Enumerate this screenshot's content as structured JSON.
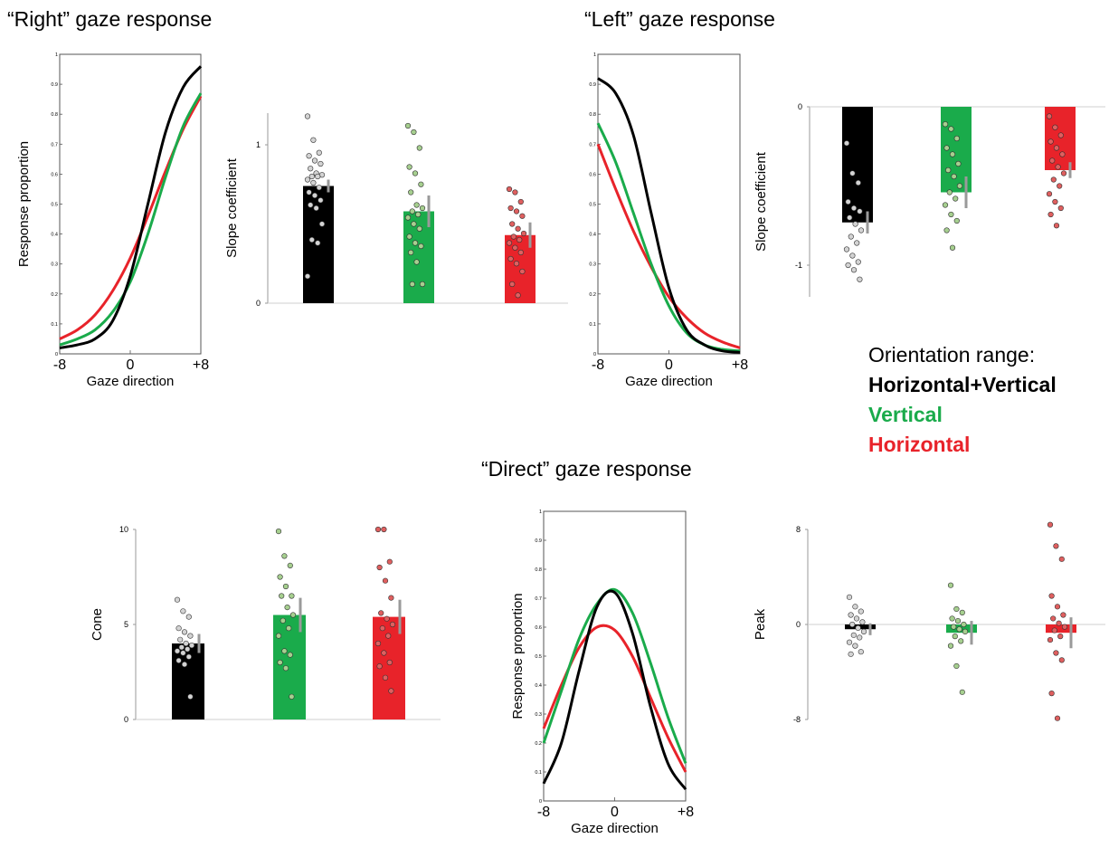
{
  "figure": {
    "panel_titles": {
      "right": "“Right” gaze response",
      "left": "“Left” gaze response",
      "direct": "“Direct” gaze response"
    },
    "legend": {
      "title": "Orientation range:",
      "items": [
        {
          "label": "Horizontal+Vertical",
          "color": "#000000"
        },
        {
          "label": "Vertical",
          "color": "#1aab4b"
        },
        {
          "label": "Horizontal",
          "color": "#e8232a"
        }
      ]
    }
  },
  "chart_data": [
    {
      "id": "right_curve",
      "type": "line",
      "title": "“Right” gaze response",
      "xlabel": "Gaze direction",
      "ylabel": "Response proportion",
      "xlim": [
        -8,
        8
      ],
      "ylim": [
        0,
        1
      ],
      "xticks": [
        "-8",
        "0",
        "+8"
      ],
      "yticks": [
        "0",
        "0.1",
        "0.2",
        "0.3",
        "0.4",
        "0.5",
        "0.6",
        "0.7",
        "0.8",
        "0.9",
        "1"
      ],
      "x": [
        -8,
        -6,
        -4,
        -2,
        0,
        2,
        4,
        6,
        8
      ],
      "series": [
        {
          "color": "#000000",
          "values": [
            0.02,
            0.03,
            0.05,
            0.11,
            0.26,
            0.5,
            0.74,
            0.89,
            0.96
          ]
        },
        {
          "color": "#1aab4b",
          "values": [
            0.03,
            0.05,
            0.08,
            0.14,
            0.24,
            0.4,
            0.59,
            0.76,
            0.87
          ]
        },
        {
          "color": "#e8232a",
          "values": [
            0.05,
            0.08,
            0.13,
            0.21,
            0.32,
            0.46,
            0.61,
            0.75,
            0.86
          ]
        }
      ]
    },
    {
      "id": "right_slope",
      "type": "bar",
      "ylabel": "Slope coefficient",
      "ylim": [
        0,
        1.2
      ],
      "yticks": [
        "0",
        "1"
      ],
      "bars": [
        {
          "color": "#000000",
          "dot_color": "#d3d3d3",
          "value": 0.74,
          "err": 0.04,
          "points": [
            1.18,
            1.03,
            0.95,
            0.93,
            0.9,
            0.88,
            0.85,
            0.82,
            0.81,
            0.8,
            0.8,
            0.78,
            0.76,
            0.73,
            0.7,
            0.68,
            0.65,
            0.62,
            0.6,
            0.5,
            0.4,
            0.38,
            0.17
          ]
        },
        {
          "color": "#1aab4b",
          "dot_color": "#a6cf8f",
          "value": 0.58,
          "err": 0.1,
          "points": [
            1.12,
            1.08,
            0.98,
            0.86,
            0.82,
            0.75,
            0.7,
            0.62,
            0.6,
            0.58,
            0.56,
            0.54,
            0.5,
            0.47,
            0.42,
            0.38,
            0.36,
            0.32,
            0.26,
            0.12,
            0.12
          ]
        },
        {
          "color": "#e8232a",
          "dot_color": "#df5f5f",
          "value": 0.43,
          "err": 0.08,
          "points": [
            0.72,
            0.7,
            0.64,
            0.6,
            0.58,
            0.55,
            0.5,
            0.47,
            0.44,
            0.42,
            0.4,
            0.38,
            0.35,
            0.32,
            0.28,
            0.25,
            0.2,
            0.12,
            0.05
          ]
        }
      ]
    },
    {
      "id": "left_curve",
      "type": "line",
      "title": "“Left” gaze response",
      "xlabel": "Gaze direction",
      "xlim": [
        -8,
        8
      ],
      "ylim": [
        0,
        1
      ],
      "xticks": [
        "-8",
        "0",
        "+8"
      ],
      "yticks": [
        "0",
        "0.1",
        "0.2",
        "0.3",
        "0.4",
        "0.5",
        "0.6",
        "0.7",
        "0.8",
        "0.9",
        "1"
      ],
      "x": [
        -8,
        -6,
        -4,
        -2,
        0,
        2,
        4,
        6,
        8
      ],
      "series": [
        {
          "color": "#000000",
          "values": [
            0.92,
            0.87,
            0.73,
            0.47,
            0.22,
            0.08,
            0.03,
            0.01,
            0.005
          ]
        },
        {
          "color": "#1aab4b",
          "values": [
            0.77,
            0.64,
            0.47,
            0.3,
            0.16,
            0.07,
            0.03,
            0.015,
            0.01
          ]
        },
        {
          "color": "#e8232a",
          "values": [
            0.7,
            0.55,
            0.41,
            0.29,
            0.19,
            0.12,
            0.07,
            0.04,
            0.02
          ]
        }
      ]
    },
    {
      "id": "left_slope",
      "type": "bar",
      "ylabel": "Slope coefficient",
      "ylim": [
        -1.2,
        0
      ],
      "yticks": [
        "0",
        "-1"
      ],
      "bars": [
        {
          "color": "#000000",
          "dot_color": "#d3d3d3",
          "value": -0.73,
          "err": 0.07,
          "points": [
            -0.23,
            -0.42,
            -0.48,
            -0.6,
            -0.64,
            -0.66,
            -0.7,
            -0.74,
            -0.78,
            -0.82,
            -0.86,
            -0.9,
            -0.94,
            -0.98,
            -1.0,
            -1.03,
            -1.09
          ]
        },
        {
          "color": "#1aab4b",
          "dot_color": "#a6cf8f",
          "value": -0.54,
          "err": 0.1,
          "points": [
            -0.11,
            -0.14,
            -0.2,
            -0.26,
            -0.3,
            -0.36,
            -0.4,
            -0.44,
            -0.5,
            -0.54,
            -0.58,
            -0.62,
            -0.68,
            -0.72,
            -0.78,
            -0.89
          ]
        },
        {
          "color": "#e8232a",
          "dot_color": "#df5f5f",
          "value": -0.4,
          "err": 0.05,
          "points": [
            -0.06,
            -0.13,
            -0.18,
            -0.22,
            -0.26,
            -0.3,
            -0.34,
            -0.38,
            -0.42,
            -0.46,
            -0.5,
            -0.55,
            -0.6,
            -0.64,
            -0.68,
            -0.75
          ]
        }
      ]
    },
    {
      "id": "direct_cone",
      "type": "bar",
      "ylabel": "Cone",
      "ylim": [
        0,
        10
      ],
      "yticks": [
        "0",
        "5",
        "10"
      ],
      "bars": [
        {
          "color": "#000000",
          "dot_color": "#d3d3d3",
          "value": 4.0,
          "err": 0.5,
          "points": [
            6.3,
            5.7,
            5.4,
            4.8,
            4.6,
            4.4,
            4.2,
            4.0,
            3.9,
            3.8,
            3.7,
            3.6,
            3.5,
            3.3,
            3.1,
            2.9,
            1.2
          ]
        },
        {
          "color": "#1aab4b",
          "dot_color": "#a6cf8f",
          "value": 5.5,
          "err": 0.9,
          "points": [
            9.9,
            8.6,
            8.1,
            7.5,
            7.0,
            6.5,
            6.5,
            5.9,
            5.5,
            5.2,
            4.8,
            4.4,
            3.6,
            3.4,
            3.0,
            2.7,
            1.2
          ]
        },
        {
          "color": "#e8232a",
          "dot_color": "#df5f5f",
          "value": 5.4,
          "err": 0.9,
          "points": [
            10.0,
            10.0,
            8.3,
            8.0,
            7.3,
            6.4,
            5.6,
            5.3,
            5.0,
            4.8,
            4.4,
            4.0,
            3.5,
            3.0,
            2.8,
            2.2,
            1.5
          ]
        }
      ]
    },
    {
      "id": "direct_curve",
      "type": "line",
      "title": "“Direct” gaze response",
      "xlabel": "Gaze direction",
      "ylabel": "Response proportion",
      "xlim": [
        -8,
        8
      ],
      "ylim": [
        0,
        1
      ],
      "xticks": [
        "-8",
        "0",
        "+8"
      ],
      "yticks": [
        "0",
        "0.1",
        "0.2",
        "0.3",
        "0.4",
        "0.5",
        "0.6",
        "0.7",
        "0.8",
        "0.9",
        "1"
      ],
      "x": [
        -8,
        -6,
        -4,
        -2,
        0,
        2,
        4,
        6,
        8
      ],
      "series": [
        {
          "color": "#000000",
          "values": [
            0.06,
            0.2,
            0.45,
            0.67,
            0.72,
            0.58,
            0.33,
            0.13,
            0.04
          ]
        },
        {
          "color": "#1aab4b",
          "values": [
            0.2,
            0.38,
            0.56,
            0.68,
            0.73,
            0.65,
            0.48,
            0.29,
            0.13
          ]
        },
        {
          "color": "#e8232a",
          "values": [
            0.25,
            0.4,
            0.53,
            0.6,
            0.59,
            0.5,
            0.36,
            0.22,
            0.1
          ]
        }
      ]
    },
    {
      "id": "direct_peak",
      "type": "bar",
      "ylabel": "Peak",
      "ylim": [
        -8,
        8
      ],
      "yticks": [
        "-8",
        "0",
        "8"
      ],
      "bars": [
        {
          "color": "#000000",
          "dot_color": "#d3d3d3",
          "value": -0.4,
          "err": 0.5,
          "points": [
            2.3,
            1.5,
            1.1,
            0.8,
            0.5,
            0.2,
            0.0,
            -0.3,
            -0.6,
            -0.9,
            -1.1,
            -1.5,
            -1.8,
            -2.3,
            -2.5
          ]
        },
        {
          "color": "#1aab4b",
          "dot_color": "#a6cf8f",
          "value": -0.7,
          "err": 1.0,
          "points": [
            3.3,
            1.3,
            1.0,
            0.5,
            0.3,
            0.0,
            -0.2,
            -0.4,
            -0.6,
            -1.0,
            -1.4,
            -1.8,
            -3.5,
            -5.7
          ]
        },
        {
          "color": "#e8232a",
          "dot_color": "#df5f5f",
          "value": -0.7,
          "err": 1.3,
          "points": [
            8.4,
            6.6,
            5.5,
            2.4,
            1.5,
            0.8,
            0.5,
            0.1,
            -0.2,
            -0.5,
            -1.0,
            -1.3,
            -2.4,
            -3.0,
            -5.8,
            -7.9
          ]
        }
      ]
    }
  ]
}
